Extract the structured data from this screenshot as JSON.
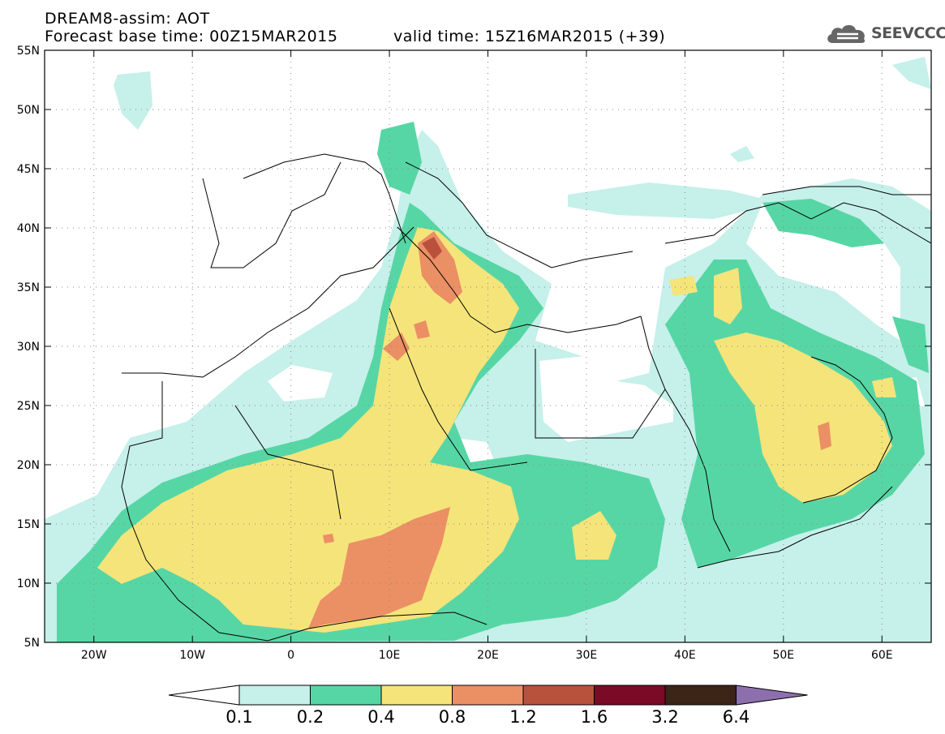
{
  "header": {
    "title": "DREAM8-assim: AOT",
    "base_time": "Forecast base time: 00Z15MAR2015",
    "valid_time": "valid time: 15Z16MAR2015 (+39)"
  },
  "logo": {
    "text": "SEEVCCC",
    "icon": "cloud-icon"
  },
  "map": {
    "lon_range": [
      -25,
      65
    ],
    "lat_range": [
      5,
      55
    ],
    "grid": true,
    "lat_ticks": [
      {
        "value": 55,
        "label": "55N"
      },
      {
        "value": 50,
        "label": "50N"
      },
      {
        "value": 45,
        "label": "45N"
      },
      {
        "value": 40,
        "label": "40N"
      },
      {
        "value": 35,
        "label": "35N"
      },
      {
        "value": 30,
        "label": "30N"
      },
      {
        "value": 25,
        "label": "25N"
      },
      {
        "value": 20,
        "label": "20N"
      },
      {
        "value": 15,
        "label": "15N"
      },
      {
        "value": 10,
        "label": "10N"
      },
      {
        "value": 5,
        "label": "5N"
      }
    ],
    "lon_ticks": [
      {
        "value": -20,
        "label": "20W"
      },
      {
        "value": -10,
        "label": "10W"
      },
      {
        "value": 0,
        "label": "0"
      },
      {
        "value": 10,
        "label": "10E"
      },
      {
        "value": 20,
        "label": "20E"
      },
      {
        "value": 30,
        "label": "30E"
      },
      {
        "value": 40,
        "label": "40E"
      },
      {
        "value": 50,
        "label": "50E"
      },
      {
        "value": 60,
        "label": "60E"
      }
    ],
    "levels": [
      {
        "label": "0.1",
        "color": "#c6f0ea"
      },
      {
        "label": "0.2",
        "color": "#57d6a5"
      },
      {
        "label": "0.4",
        "color": "#f5e47a"
      },
      {
        "label": "0.8",
        "color": "#eb8f65"
      },
      {
        "label": "1.2",
        "color": "#b8523c"
      },
      {
        "label": "1.6",
        "color": "#7a0a26"
      },
      {
        "label": "3.2",
        "color": "#3c2417"
      },
      {
        "label": "6.4",
        "color": "#8e6fae"
      }
    ]
  }
}
